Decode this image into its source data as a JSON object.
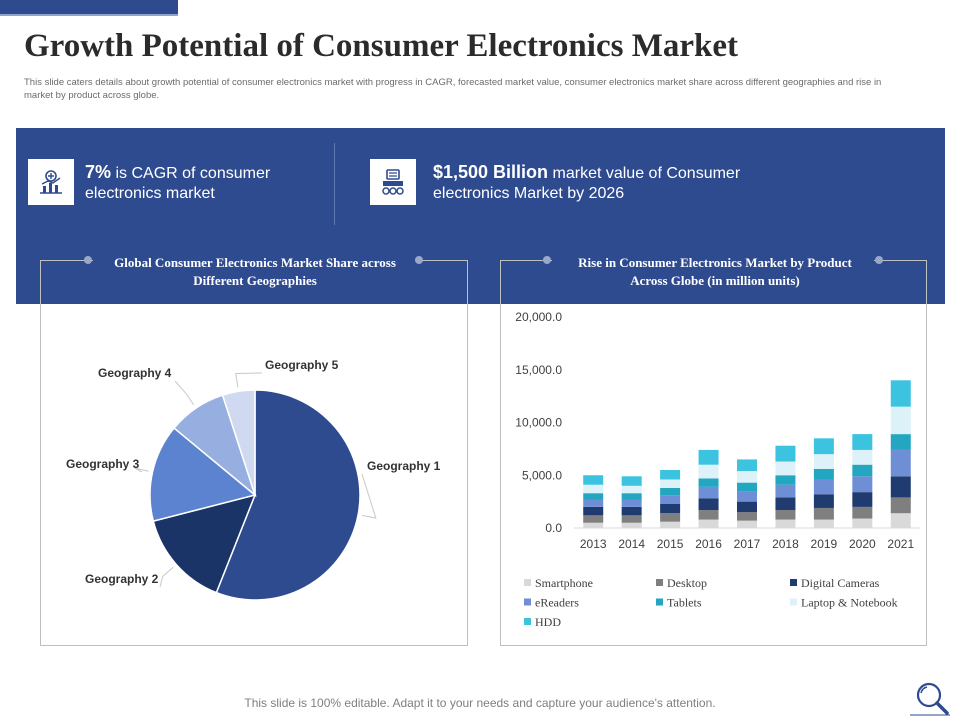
{
  "slide": {
    "title": "Growth Potential of Consumer Electronics Market",
    "subtitle": "This slide caters details about growth potential of consumer electronics market with progress in CAGR, forecasted market value, consumer electronics market share across different geographies and rise in market by product across globe.",
    "footer": "This slide is 100% editable. Adapt it to your needs and capture your audience's attention."
  },
  "stats": [
    {
      "highlight": "7%",
      "text": " is CAGR of consumer electronics market",
      "icon": "growth-chart-icon"
    },
    {
      "highlight": "$1,500 Billion",
      "text": " market value of Consumer electronics Market by 2026",
      "icon": "calculator-money-icon"
    }
  ],
  "colors": {
    "brand": "#2E4B8F",
    "pie": [
      "#2E4B8F",
      "#1B3468",
      "#5B83CF",
      "#96AEE0",
      "#CFD9F0"
    ],
    "series": [
      "#D9D9D9",
      "#7F7F7F",
      "#1F3B70",
      "#6E8FD6",
      "#23A6C0",
      "#DDF1F8",
      "#3CC3E0"
    ]
  },
  "chart_data": [
    {
      "type": "pie",
      "title": "Global Consumer Electronics Market Share across Different Geographies",
      "labels": [
        "Geography 1",
        "Geography 2",
        "Geography 3",
        "Geography 4",
        "Geography 5"
      ],
      "values": [
        56,
        15,
        15,
        9,
        5
      ]
    },
    {
      "type": "bar",
      "stacked": true,
      "title": "Rise in Consumer Electronics Market by Product Across Globe (in million units)",
      "categories": [
        "2013",
        "2014",
        "2015",
        "2016",
        "2017",
        "2018",
        "2019",
        "2020",
        "2021"
      ],
      "ylim": [
        0,
        20000
      ],
      "yticks": [
        "0.0",
        "5,000.0",
        "10,000.0",
        "15,000.0",
        "20,000.0"
      ],
      "series": [
        {
          "name": "Smartphone",
          "values": [
            500,
            500,
            600,
            800,
            700,
            800,
            800,
            900,
            1400
          ]
        },
        {
          "name": "Desktop",
          "values": [
            700,
            700,
            800,
            900,
            800,
            900,
            1100,
            1100,
            1500
          ]
        },
        {
          "name": "Digital Cameras",
          "values": [
            800,
            800,
            900,
            1100,
            1000,
            1200,
            1300,
            1400,
            2000
          ]
        },
        {
          "name": "eReaders",
          "values": [
            700,
            700,
            800,
            1100,
            1000,
            1200,
            1400,
            1500,
            2500
          ]
        },
        {
          "name": "Tablets",
          "values": [
            600,
            600,
            700,
            800,
            800,
            900,
            1000,
            1100,
            1500
          ]
        },
        {
          "name": "Laptop & Notebook",
          "values": [
            800,
            700,
            800,
            1300,
            1100,
            1300,
            1400,
            1400,
            2600
          ]
        },
        {
          "name": "HDD",
          "values": [
            900,
            900,
            900,
            1400,
            1100,
            1500,
            1500,
            1500,
            2500
          ]
        }
      ]
    }
  ]
}
